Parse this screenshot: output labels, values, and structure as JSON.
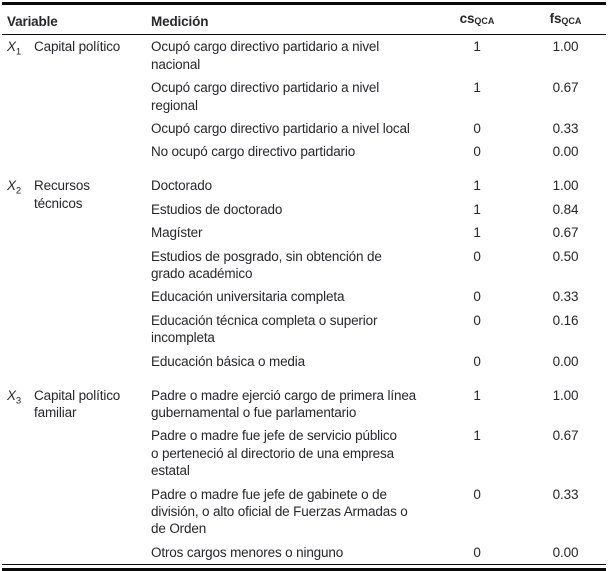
{
  "colors": {
    "text": "#27272c",
    "rule": "#0a0a0a",
    "background": "#ffffff"
  },
  "table": {
    "headers": {
      "variable": "Variable",
      "medicion": "Medición",
      "csqca": {
        "base": "cs",
        "sub": "QCA"
      },
      "fsqca": {
        "base": "fs",
        "sub": "QCA"
      }
    },
    "groups": [
      {
        "var_base": "X",
        "var_sub": "1",
        "name": "Capital político",
        "rows": [
          {
            "medicion": "Ocupó cargo directivo partidario a nivel\nnacional",
            "cs": "1",
            "fs": "1.00"
          },
          {
            "medicion": "Ocupó cargo directivo partidario a nivel\nregional",
            "cs": "1",
            "fs": "0.67"
          },
          {
            "medicion": "Ocupó cargo directivo partidario a nivel local",
            "cs": "0",
            "fs": "0.33"
          },
          {
            "medicion": "No ocupó cargo directivo partidario",
            "cs": "0",
            "fs": "0.00"
          }
        ]
      },
      {
        "var_base": "X",
        "var_sub": "2",
        "name": "Recursos\ntécnicos",
        "rows": [
          {
            "medicion": "Doctorado",
            "cs": "1",
            "fs": "1.00"
          },
          {
            "medicion": "Estudios de doctorado",
            "cs": "1",
            "fs": "0.84"
          },
          {
            "medicion": "Magíster",
            "cs": "1",
            "fs": "0.67"
          },
          {
            "medicion": "Estudios de posgrado, sin obtención de\ngrado académico",
            "cs": "0",
            "fs": "0.50"
          },
          {
            "medicion": "Educación universitaria completa",
            "cs": "0",
            "fs": "0.33"
          },
          {
            "medicion": "Educación técnica completa o superior\nincompleta",
            "cs": "0",
            "fs": "0.16"
          },
          {
            "medicion": "Educación básica o media",
            "cs": "0",
            "fs": "0.00"
          }
        ]
      },
      {
        "var_base": "X",
        "var_sub": "3",
        "name": "Capital político\nfamiliar",
        "rows": [
          {
            "medicion": "Padre o madre ejerció cargo de primera línea\ngubernamental o fue parlamentario",
            "cs": "1",
            "fs": "1.00"
          },
          {
            "medicion": "Padre o madre fue jefe de servicio público\no perteneció al directorio de una empresa\nestatal",
            "cs": "1",
            "fs": "0.67"
          },
          {
            "medicion": "Padre o madre fue jefe de gabinete o de\ndivisión, o alto oficial de Fuerzas Armadas o\nde Orden",
            "cs": "0",
            "fs": "0.33"
          },
          {
            "medicion": "Otros cargos menores o ninguno",
            "cs": "0",
            "fs": "0.00"
          }
        ]
      }
    ]
  }
}
